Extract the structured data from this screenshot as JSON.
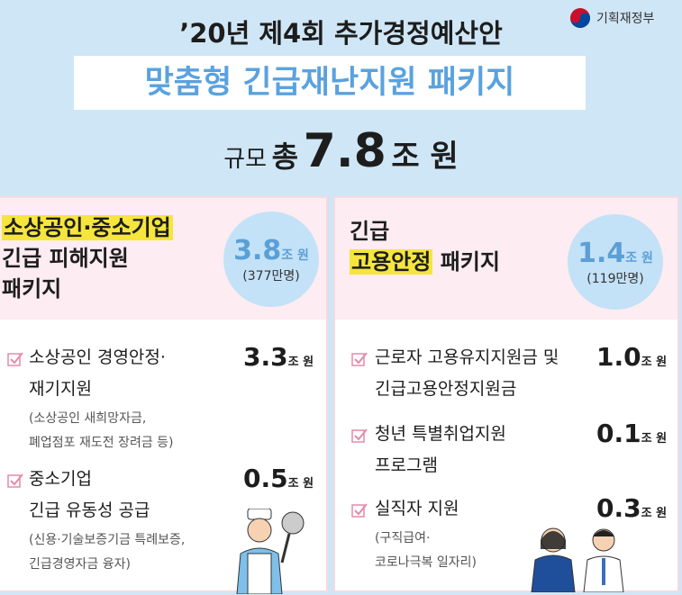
{
  "header": {
    "title": "’20년 제4회 추가경정예산안",
    "logo": "기획재정부",
    "banner": "맞춤형 긴급재난지원 패키지",
    "scale": {
      "label": "규모",
      "prefix": "총",
      "amount": "7.8",
      "unit": "조 원"
    }
  },
  "panels": [
    {
      "title": {
        "highlight": "소상공인·중소기업",
        "lines": [
          "긴급 피해지원",
          "패키지"
        ]
      },
      "badge": {
        "amount": "3.8",
        "unit": "조 원",
        "note": "(377만명)"
      },
      "items": [
        {
          "lines": [
            "소상공인 경영안정·",
            "재기지원"
          ],
          "amount": "3.3",
          "unit": "조 원",
          "notes": [
            "(소상공인 새희망자금,",
            "폐업점포 재도전 장려금 등)"
          ]
        },
        {
          "lines": [
            "중소기업",
            "긴급 유동성 공급"
          ],
          "amount": "0.5",
          "unit": "조 원",
          "notes": [
            "(신용·기술보증기금 특례보증,",
            "긴급경영자금 융자)"
          ]
        }
      ]
    },
    {
      "title": {
        "first": "긴급",
        "highlight": "고용안정",
        "rest": "패키지"
      },
      "badge": {
        "amount": "1.4",
        "unit": "조 원",
        "note": "(119만명)"
      },
      "items": [
        {
          "lines": [
            "근로자 고용유지지원금 및",
            "긴급고용안정지원금"
          ],
          "amount": "1.0",
          "unit": "조 원"
        },
        {
          "lines": [
            "청년 특별취업지원",
            "프로그램"
          ],
          "amount": "0.1",
          "unit": "조 원"
        },
        {
          "lines": [
            "실직자 지원"
          ],
          "amount": "0.3",
          "unit": "조 원",
          "notes": [
            "(구직급여·",
            "코로나극복 일자리)"
          ]
        }
      ]
    }
  ]
}
